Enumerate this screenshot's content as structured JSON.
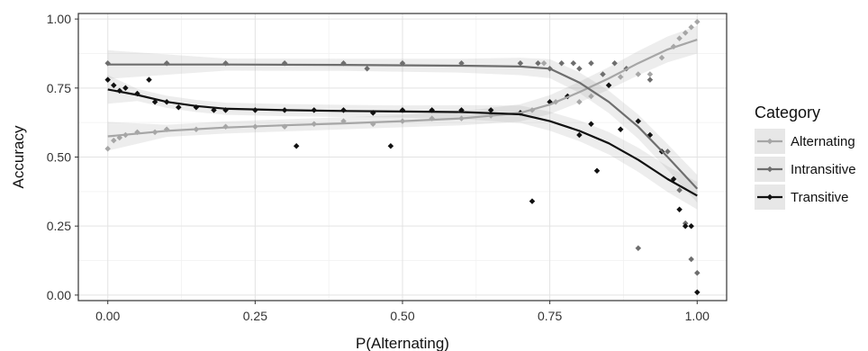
{
  "chart_data": {
    "type": "scatter",
    "title": "",
    "xlabel": "P(Alternating)",
    "ylabel": "Accuracy",
    "xlim": [
      -0.05,
      1.05
    ],
    "ylim": [
      -0.02,
      1.02
    ],
    "x_ticks": [
      "0.00",
      "0.25",
      "0.50",
      "0.75",
      "1.00"
    ],
    "y_ticks": [
      "0.00",
      "0.25",
      "0.50",
      "0.75",
      "1.00"
    ],
    "grid": true,
    "legend": {
      "title": "Category",
      "position": "right"
    },
    "series": [
      {
        "name": "Alternating",
        "color": "#a6a6a6",
        "smooth": [
          [
            0.0,
            0.575
          ],
          [
            0.1,
            0.595
          ],
          [
            0.2,
            0.607
          ],
          [
            0.3,
            0.615
          ],
          [
            0.4,
            0.622
          ],
          [
            0.5,
            0.63
          ],
          [
            0.6,
            0.64
          ],
          [
            0.7,
            0.66
          ],
          [
            0.75,
            0.69
          ],
          [
            0.8,
            0.735
          ],
          [
            0.85,
            0.785
          ],
          [
            0.9,
            0.84
          ],
          [
            0.95,
            0.89
          ],
          [
            1.0,
            0.925
          ]
        ],
        "points": [
          [
            0.0,
            0.53
          ],
          [
            0.01,
            0.56
          ],
          [
            0.02,
            0.57
          ],
          [
            0.03,
            0.58
          ],
          [
            0.05,
            0.59
          ],
          [
            0.08,
            0.59
          ],
          [
            0.1,
            0.6
          ],
          [
            0.15,
            0.6
          ],
          [
            0.2,
            0.61
          ],
          [
            0.25,
            0.61
          ],
          [
            0.3,
            0.61
          ],
          [
            0.35,
            0.62
          ],
          [
            0.4,
            0.63
          ],
          [
            0.45,
            0.62
          ],
          [
            0.5,
            0.63
          ],
          [
            0.55,
            0.64
          ],
          [
            0.6,
            0.64
          ],
          [
            0.65,
            0.65
          ],
          [
            0.7,
            0.66
          ],
          [
            0.72,
            0.67
          ],
          [
            0.74,
            0.84
          ],
          [
            0.76,
            0.7
          ],
          [
            0.78,
            0.72
          ],
          [
            0.8,
            0.7
          ],
          [
            0.82,
            0.72
          ],
          [
            0.85,
            0.76
          ],
          [
            0.87,
            0.79
          ],
          [
            0.9,
            0.8
          ],
          [
            0.92,
            0.8
          ],
          [
            0.94,
            0.86
          ],
          [
            0.96,
            0.9
          ],
          [
            0.97,
            0.93
          ],
          [
            0.98,
            0.95
          ],
          [
            0.99,
            0.97
          ],
          [
            1.0,
            0.99
          ]
        ]
      },
      {
        "name": "Intransitive",
        "color": "#6e6e6e",
        "smooth": [
          [
            0.0,
            0.835
          ],
          [
            0.2,
            0.835
          ],
          [
            0.4,
            0.834
          ],
          [
            0.6,
            0.831
          ],
          [
            0.7,
            0.828
          ],
          [
            0.75,
            0.82
          ],
          [
            0.8,
            0.77
          ],
          [
            0.85,
            0.7
          ],
          [
            0.9,
            0.61
          ],
          [
            0.95,
            0.5
          ],
          [
            1.0,
            0.385
          ]
        ],
        "points": [
          [
            0.0,
            0.84
          ],
          [
            0.1,
            0.84
          ],
          [
            0.2,
            0.84
          ],
          [
            0.3,
            0.84
          ],
          [
            0.4,
            0.84
          ],
          [
            0.44,
            0.82
          ],
          [
            0.5,
            0.84
          ],
          [
            0.6,
            0.84
          ],
          [
            0.7,
            0.84
          ],
          [
            0.73,
            0.84
          ],
          [
            0.75,
            0.82
          ],
          [
            0.77,
            0.84
          ],
          [
            0.79,
            0.84
          ],
          [
            0.8,
            0.82
          ],
          [
            0.82,
            0.84
          ],
          [
            0.84,
            0.8
          ],
          [
            0.86,
            0.84
          ],
          [
            0.88,
            0.82
          ],
          [
            0.9,
            0.17
          ],
          [
            0.92,
            0.78
          ],
          [
            0.95,
            0.52
          ],
          [
            0.97,
            0.38
          ],
          [
            0.98,
            0.26
          ],
          [
            0.99,
            0.13
          ],
          [
            1.0,
            0.08
          ]
        ]
      },
      {
        "name": "Transitive",
        "color": "#111111",
        "smooth": [
          [
            0.0,
            0.745
          ],
          [
            0.05,
            0.725
          ],
          [
            0.1,
            0.7
          ],
          [
            0.15,
            0.685
          ],
          [
            0.2,
            0.675
          ],
          [
            0.3,
            0.67
          ],
          [
            0.4,
            0.667
          ],
          [
            0.5,
            0.665
          ],
          [
            0.6,
            0.663
          ],
          [
            0.7,
            0.655
          ],
          [
            0.75,
            0.63
          ],
          [
            0.8,
            0.595
          ],
          [
            0.85,
            0.55
          ],
          [
            0.9,
            0.49
          ],
          [
            0.95,
            0.42
          ],
          [
            1.0,
            0.36
          ]
        ],
        "points": [
          [
            0.0,
            0.78
          ],
          [
            0.01,
            0.76
          ],
          [
            0.02,
            0.74
          ],
          [
            0.03,
            0.75
          ],
          [
            0.05,
            0.73
          ],
          [
            0.07,
            0.78
          ],
          [
            0.08,
            0.7
          ],
          [
            0.1,
            0.7
          ],
          [
            0.12,
            0.68
          ],
          [
            0.15,
            0.68
          ],
          [
            0.18,
            0.67
          ],
          [
            0.2,
            0.67
          ],
          [
            0.25,
            0.67
          ],
          [
            0.3,
            0.67
          ],
          [
            0.32,
            0.54
          ],
          [
            0.35,
            0.67
          ],
          [
            0.4,
            0.67
          ],
          [
            0.45,
            0.66
          ],
          [
            0.48,
            0.54
          ],
          [
            0.5,
            0.67
          ],
          [
            0.55,
            0.67
          ],
          [
            0.6,
            0.67
          ],
          [
            0.65,
            0.67
          ],
          [
            0.7,
            0.66
          ],
          [
            0.72,
            0.34
          ],
          [
            0.75,
            0.7
          ],
          [
            0.78,
            0.72
          ],
          [
            0.8,
            0.58
          ],
          [
            0.82,
            0.62
          ],
          [
            0.83,
            0.45
          ],
          [
            0.85,
            0.76
          ],
          [
            0.87,
            0.6
          ],
          [
            0.9,
            0.63
          ],
          [
            0.92,
            0.58
          ],
          [
            0.94,
            0.52
          ],
          [
            0.96,
            0.42
          ],
          [
            0.97,
            0.31
          ],
          [
            0.98,
            0.25
          ],
          [
            0.99,
            0.25
          ],
          [
            1.0,
            0.01
          ]
        ]
      }
    ]
  }
}
